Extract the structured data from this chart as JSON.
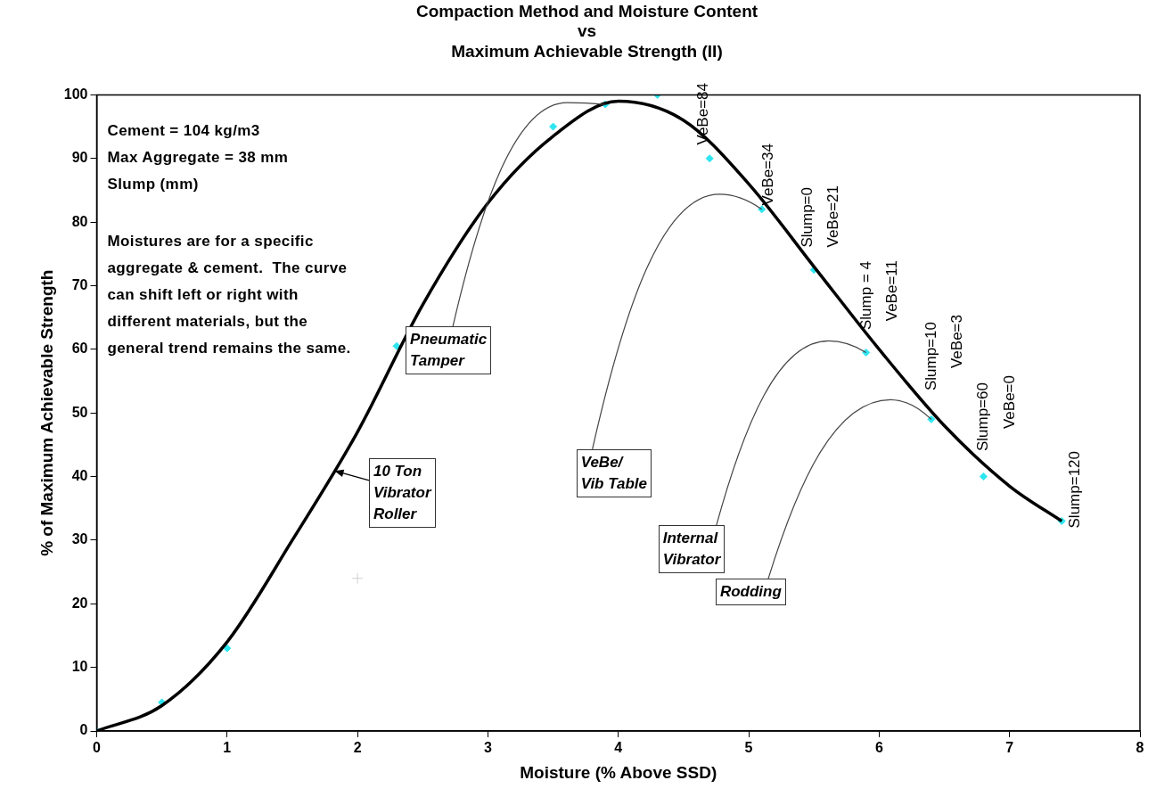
{
  "chart_data": {
    "type": "scatter",
    "title": "Compaction Method and Moisture Content\nvs\nMaximum Achievable Strength (II)",
    "xlabel": "Moisture (% Above SSD)",
    "ylabel": "% of Maximum Achievable Strength",
    "xlim": [
      0,
      8
    ],
    "xticks": [
      0,
      1,
      2,
      3,
      4,
      5,
      6,
      7,
      8
    ],
    "ylim": [
      0,
      100
    ],
    "yticks": [
      0,
      10,
      20,
      30,
      40,
      50,
      60,
      70,
      80,
      90,
      100
    ],
    "grid": false,
    "legend": false,
    "series": [
      {
        "type": "line",
        "color": "#000000",
        "marker": "none",
        "line_style": "solid",
        "x": [
          0,
          0.5,
          1,
          1.5,
          2,
          2.5,
          3,
          3.5,
          4,
          4.5,
          5,
          5.5,
          6,
          6.5,
          7,
          7.4
        ],
        "values": [
          0,
          4,
          14,
          30,
          47,
          67,
          83,
          93.5,
          99,
          96,
          86,
          73,
          60,
          48,
          38.5,
          33
        ]
      },
      {
        "type": "scatter",
        "color": "#2ee6f0",
        "marker": "diamond",
        "x": [
          0,
          0.5,
          1,
          2.3,
          3.5,
          3.9,
          4.3,
          4.7,
          5.1,
          5.5,
          5.9,
          6.4,
          6.8,
          7.4
        ],
        "values": [
          0,
          4.5,
          13,
          60.5,
          95,
          98.5,
          100,
          90,
          82,
          72.5,
          59.5,
          49,
          40,
          33
        ]
      },
      {
        "type": "scatter",
        "color": "#d0d0d0",
        "marker": "cross",
        "x": [
          2
        ],
        "values": [
          24
        ]
      }
    ],
    "annotations": [
      "Cement = 104 kg/m3\nMax Aggregate = 38 mm\nSlump (mm)",
      "Moistures are for a specific aggregate & cement.  The curve can shift left or right with different materials, but the general trend remains the same.",
      {
        "text": "Pneumatic\nTamper",
        "x": 3.9,
        "y": 98.5
      },
      "10 Ton\nVibrator\nRoller",
      {
        "text": "VeBe/\nVib Table",
        "x": 5.1,
        "y": 82
      },
      {
        "text": "Internal\nVibrator",
        "x": 5.9,
        "y": 59.5
      },
      {
        "text": "Rodding",
        "x": 6.4,
        "y": 49
      },
      "VeBe=84",
      {
        "text": "VeBe=34",
        "x": 5.15,
        "y": 82.5
      },
      "Slump=0",
      "VeBe=21",
      {
        "text": "Slump = 4",
        "x": 5.9,
        "y": 63
      },
      "VeBe=11",
      "Slump=10",
      "VeBe=3",
      "Slump=60",
      "VeBe=0",
      "Slump=120"
    ]
  }
}
